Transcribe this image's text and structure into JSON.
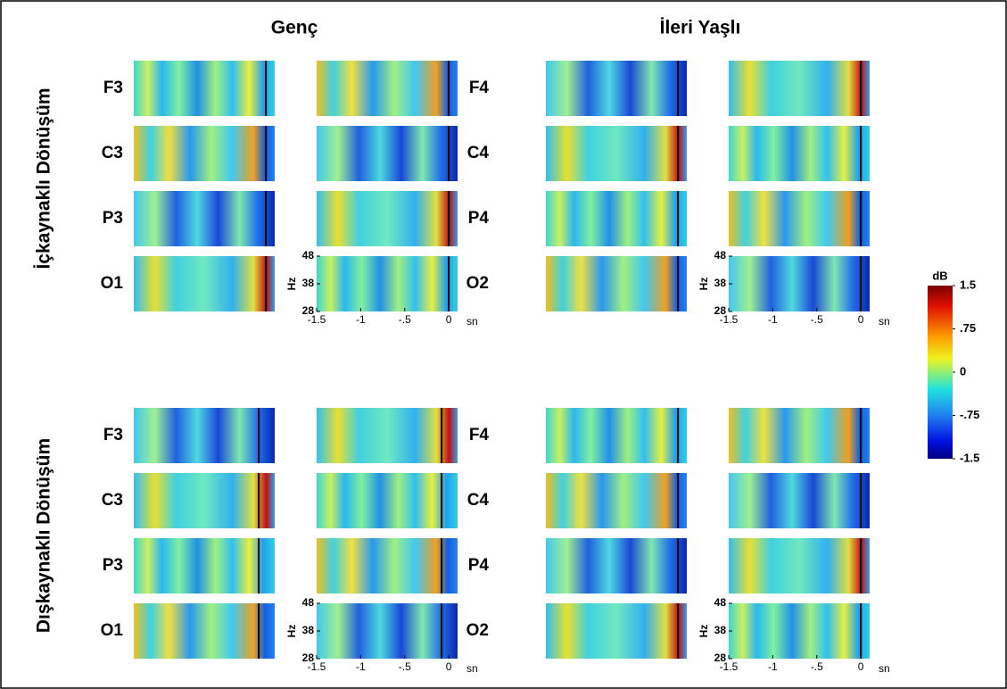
{
  "chart_data": {
    "type": "heatmap-grid",
    "column_titles": [
      "Genç",
      "İleri Yaşlı"
    ],
    "row_titles": [
      "İçkaynaklı Dönüşüm",
      "Dışkaynaklı Dönüşüm"
    ],
    "channels_left": [
      "F3",
      "C3",
      "P3",
      "O1"
    ],
    "channels_right": [
      "F4",
      "C4",
      "P4",
      "O2"
    ],
    "xlabel": "sn",
    "ylabel": "Hz",
    "xlim": [
      -1.5,
      0.1
    ],
    "xticks": [
      -1.5,
      -1,
      {
        "value": -0.5,
        "label": "-.5"
      },
      0
    ],
    "ylim": [
      28,
      48
    ],
    "yticks": [
      28,
      38,
      48
    ],
    "colorbar": {
      "label": "dB",
      "clim": [
        -1.5,
        1.5
      ],
      "ticks": [
        1.5,
        {
          "value": 0.75,
          "label": ".75"
        },
        0,
        {
          "value": -0.75,
          "label": "-.75"
        },
        -1.5
      ]
    }
  }
}
